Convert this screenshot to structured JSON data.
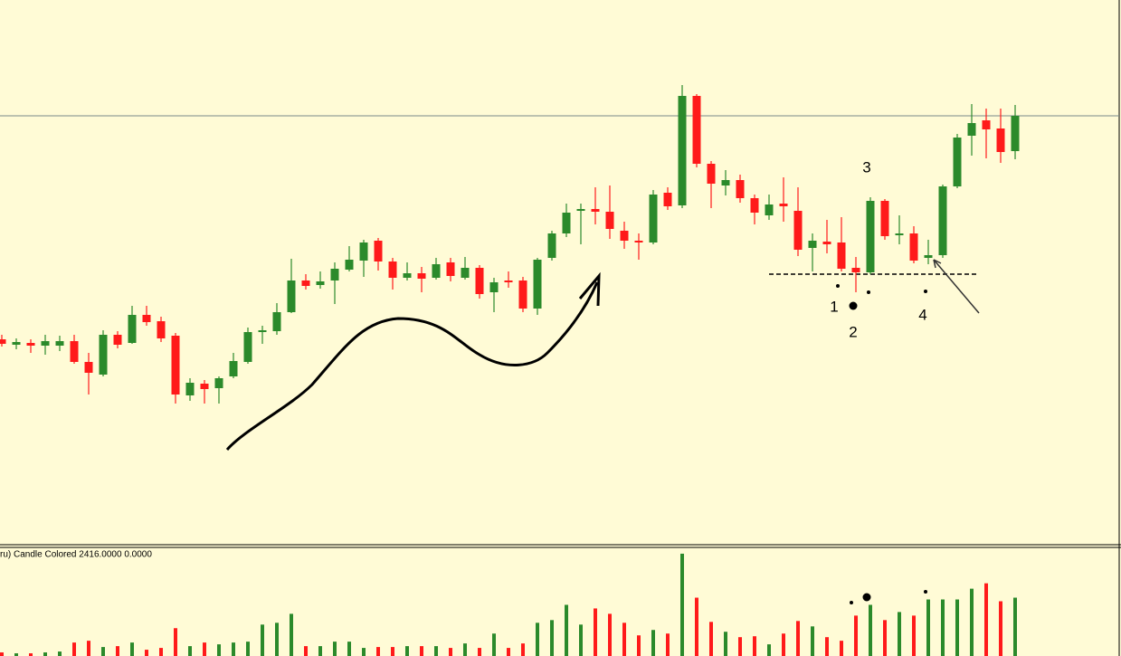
{
  "chart_data": {
    "type": "candlestick",
    "indicator_label": "ru) Candle Colored 2416.0000 0.0000",
    "annotations": [
      "1",
      "2",
      "3",
      "4"
    ],
    "up_color": "#2b8a2b",
    "down_color": "#ff1a1a",
    "ylim": [
      0,
      600
    ],
    "volume_ylim": [
      0,
      122
    ],
    "level": 472,
    "support": 297,
    "open": [
      225,
      219,
      221,
      218,
      218,
      223,
      200,
      186,
      230,
      221,
      252,
      245,
      229,
      163,
      176,
      171,
      184,
      200,
      233,
      234,
      255,
      290,
      285,
      290,
      302,
      312,
      334,
      311,
      293,
      298,
      293,
      310,
      293,
      304,
      277,
      290,
      290,
      259,
      315,
      342,
      367,
      369,
      366,
      345,
      334,
      332,
      387,
      373,
      494,
      419,
      395,
      401,
      381,
      362,
      375,
      367,
      326,
      333,
      332,
      304,
      299,
      378,
      340,
      342,
      315,
      318,
      394,
      450,
      467,
      458,
      433
    ],
    "high": [
      230,
      226,
      225,
      230,
      229,
      230,
      210,
      235,
      234,
      262,
      262,
      250,
      232,
      182,
      180,
      184,
      210,
      238,
      240,
      265,
      314,
      297,
      300,
      310,
      328,
      335,
      337,
      315,
      310,
      305,
      315,
      315,
      316,
      307,
      293,
      300,
      294,
      315,
      345,
      375,
      375,
      393,
      395,
      355,
      342,
      390,
      393,
      506,
      496,
      422,
      412,
      407,
      385,
      385,
      404,
      393,
      342,
      357,
      360,
      316,
      382,
      380,
      362,
      350,
      335,
      396,
      452,
      485,
      480,
      480,
      484
    ],
    "low": [
      217,
      214,
      210,
      208,
      212,
      198,
      164,
      184,
      215,
      220,
      240,
      222,
      154,
      157,
      154,
      154,
      182,
      198,
      220,
      230,
      254,
      280,
      281,
      264,
      300,
      294,
      301,
      280,
      290,
      277,
      291,
      289,
      291,
      270,
      255,
      282,
      255,
      252,
      312,
      338,
      330,
      352,
      336,
      325,
      313,
      330,
      368,
      370,
      415,
      370,
      384,
      376,
      352,
      357,
      355,
      317,
      300,
      320,
      300,
      277,
      297,
      335,
      330,
      309,
      308,
      315,
      392,
      428,
      425,
      420,
      424
    ],
    "close": [
      220,
      222,
      218,
      223,
      223,
      200,
      188,
      230,
      219,
      252,
      244,
      226,
      164,
      177,
      170,
      182,
      201,
      233,
      235,
      255,
      290,
      284,
      289,
      303,
      313,
      332,
      311,
      293,
      298,
      292,
      308,
      295,
      304,
      275,
      288,
      288,
      259,
      313,
      342,
      365,
      369,
      366,
      347,
      334,
      332,
      385,
      372,
      494,
      419,
      397,
      401,
      381,
      365,
      374,
      372,
      324,
      334,
      330,
      303,
      299,
      378,
      339,
      342,
      312,
      318,
      394,
      448,
      464,
      457,
      432,
      472
    ],
    "volume": [
      4,
      3,
      3,
      4,
      5,
      15,
      17,
      10,
      11,
      15,
      7,
      9,
      31,
      11,
      15,
      13,
      15,
      16,
      35,
      37,
      47,
      11,
      11,
      16,
      16,
      9,
      10,
      10,
      11,
      11,
      11,
      9,
      14,
      9,
      25,
      9,
      14,
      37,
      40,
      57,
      35,
      53,
      47,
      37,
      23,
      29,
      25,
      114,
      65,
      38,
      27,
      21,
      22,
      13,
      25,
      39,
      33,
      21,
      17,
      45,
      57,
      40,
      49,
      45,
      63,
      63,
      63,
      75,
      81,
      61,
      65
    ]
  }
}
